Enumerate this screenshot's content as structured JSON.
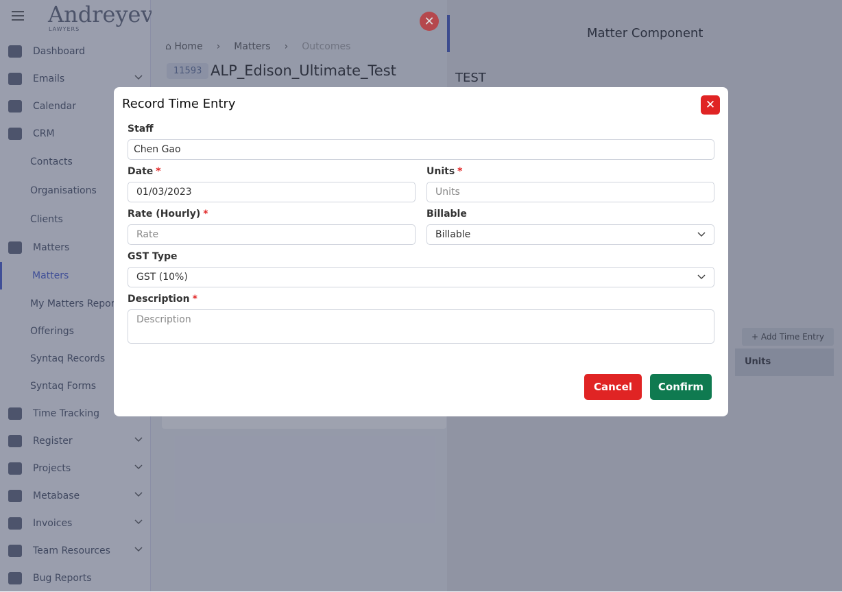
{
  "sidebar": {
    "logo": "Andreyev",
    "logo_sub": "LAWYERS",
    "items": [
      "Dashboard",
      "Emails",
      "Calendar",
      "CRM",
      "Contacts",
      "Organisations",
      "Clients",
      "Matters",
      "Matters",
      "My Matters Repor",
      "Offerings",
      "Syntaq Records",
      "Syntaq Forms",
      "Time Tracking",
      "Register",
      "Projects",
      "Metabase",
      "Invoices",
      "Team Resources",
      "Bug Reports"
    ]
  },
  "breadcrumb": [
    "Home",
    "Matters",
    "Outcomes"
  ],
  "matter": {
    "id": "11593",
    "title": "ALP_Edison_Ultimate_Test"
  },
  "panel": {
    "title": "Matter Component",
    "heading": "TEST",
    "add_button": "Add Time Entry",
    "column": "Units"
  },
  "modal": {
    "title": "Record Time Entry",
    "required_mark": "*",
    "fields": {
      "staff": {
        "label": "Staff",
        "value": "Chen Gao"
      },
      "date": {
        "label": "Date",
        "value": "01/03/2023"
      },
      "units": {
        "label": "Units",
        "placeholder": "Units"
      },
      "rate": {
        "label": "Rate (Hourly)",
        "placeholder": "Rate"
      },
      "billable": {
        "label": "Billable",
        "value": "Billable"
      },
      "gst": {
        "label": "GST Type",
        "value": "GST (10%)"
      },
      "description": {
        "label": "Description",
        "placeholder": "Description"
      }
    },
    "buttons": {
      "cancel": "Cancel",
      "confirm": "Confirm"
    }
  }
}
